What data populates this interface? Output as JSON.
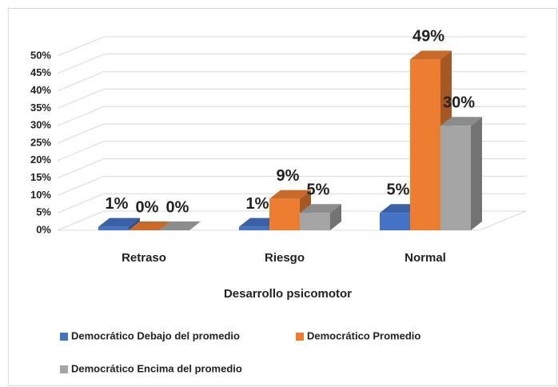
{
  "chart_data": {
    "type": "bar3d",
    "x_label": "Desarrollo psicomotor",
    "categories": [
      "Retraso",
      "Riesgo",
      "Normal"
    ],
    "series": [
      {
        "name": "Democrático Debajo del promedio",
        "color": "#4472c4",
        "values": [
          1,
          1,
          5
        ],
        "value_labels": [
          "1%",
          "1%",
          "5%"
        ]
      },
      {
        "name": "Democrático Promedio",
        "color": "#ed7d31",
        "values": [
          0,
          9,
          49
        ],
        "value_labels": [
          "0%",
          "9%",
          "49%"
        ]
      },
      {
        "name": "Democrático Encima del promedio",
        "color": "#a5a5a5",
        "values": [
          0,
          5,
          30
        ],
        "value_labels": [
          "0%",
          "5%",
          "30%"
        ]
      }
    ],
    "ylim": [
      0,
      50
    ],
    "yticks": [
      {
        "value": 0,
        "label": "0%"
      },
      {
        "value": 5,
        "label": "5%"
      },
      {
        "value": 10,
        "label": "10%"
      },
      {
        "value": 15,
        "label": "15%"
      },
      {
        "value": 20,
        "label": "20%"
      },
      {
        "value": 25,
        "label": "25%"
      },
      {
        "value": 30,
        "label": "30%"
      },
      {
        "value": 35,
        "label": "35%"
      },
      {
        "value": 40,
        "label": "40%"
      },
      {
        "value": 45,
        "label": "45%"
      },
      {
        "value": 50,
        "label": "50%"
      }
    ],
    "grid": true,
    "legend": "bottom"
  }
}
